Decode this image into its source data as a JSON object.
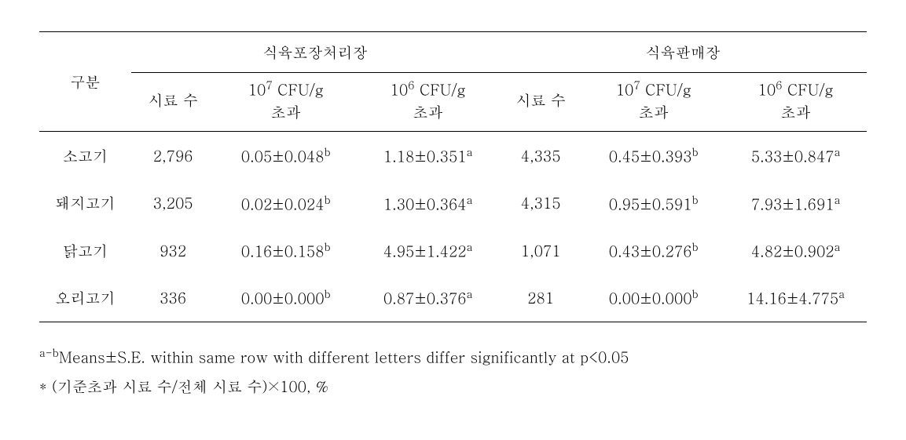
{
  "table": {
    "header": {
      "category": "구분",
      "group1": "식육포장처리장",
      "group2": "식육판매장",
      "sub_samples": "시료 수",
      "sub_cfu7_html": "10<span class=\"sup\">7</span> CFU/g<br>초과",
      "sub_cfu6_html": "10<span class=\"sup\">6</span> CFU/g<br>초과"
    },
    "rows": [
      {
        "cat": "소고기",
        "g1_n": "2,796",
        "g1_c7_html": "0.05±0.048<span class=\"sup\">b</span>",
        "g1_c6_html": "1.18±0.351<span class=\"sup\">a</span>",
        "g2_n": "4,335",
        "g2_c7_html": "0.45±0.393<span class=\"sup\">b</span>",
        "g2_c6_html": "5.33±0.847<span class=\"sup\">a</span>"
      },
      {
        "cat": "돼지고기",
        "g1_n": "3,205",
        "g1_c7_html": "0.02±0.024<span class=\"sup\">b</span>",
        "g1_c6_html": "1.30±0.364<span class=\"sup\">a</span>",
        "g2_n": "4,315",
        "g2_c7_html": "0.95±0.591<span class=\"sup\">b</span>",
        "g2_c6_html": "7.93±1.691<span class=\"sup\">a</span>"
      },
      {
        "cat": "닭고기",
        "g1_n": "932",
        "g1_c7_html": "0.16±0.158<span class=\"sup\">b</span>",
        "g1_c6_html": "4.95±1.422<span class=\"sup\">a</span>",
        "g2_n": "1,071",
        "g2_c7_html": "0.43±0.276<span class=\"sup\">b</span>",
        "g2_c6_html": "4.82±0.902<span class=\"sup\">a</span>"
      },
      {
        "cat": "오리고기",
        "g1_n": "336",
        "g1_c7_html": "0.00±0.000<span class=\"sup\">b</span>",
        "g1_c6_html": "0.87±0.376<span class=\"sup\">a</span>",
        "g2_n": "281",
        "g2_c7_html": "0.00±0.000<span class=\"sup\">b</span>",
        "g2_c6_html": "14.16±4.775<span class=\"sup\">a</span>"
      }
    ]
  },
  "footnotes": {
    "l1_html": "<span class=\"sup\">a-b</span>Means±S.E. within same row with different letters differ significantly at p&lt;0.05",
    "l2": "* (기준초과 시료 수/전체 시료 수)×100, %"
  }
}
